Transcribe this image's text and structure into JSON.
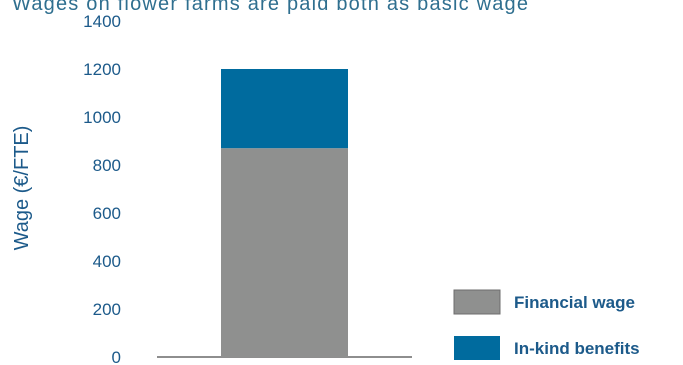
{
  "caption": "Wages on flower farms are paid both as basic wage",
  "chart_data": {
    "type": "bar",
    "stacked": true,
    "categories": [
      ""
    ],
    "series": [
      {
        "name": "Financial wage",
        "values": [
          870
        ],
        "color": "#8f908f"
      },
      {
        "name": "In-kind benefits",
        "values": [
          330
        ],
        "color": "#006b9e"
      }
    ],
    "ylabel": "Wage (€/FTE)",
    "xlabel": "",
    "ylim": [
      0,
      1400
    ],
    "yticks": [
      0,
      200,
      400,
      600,
      800,
      1000,
      1200,
      1400
    ],
    "grid": false,
    "legend_position": "bottom-right"
  }
}
